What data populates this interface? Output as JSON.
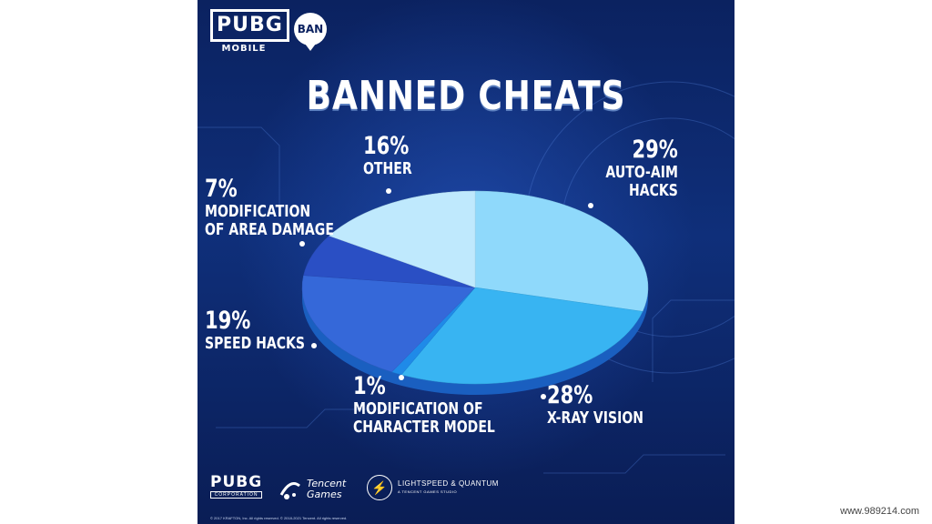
{
  "header": {
    "logo_main": "PUBG",
    "logo_sub": "MOBILE",
    "ban_badge": "BAN"
  },
  "chart_data": {
    "type": "pie",
    "title": "BANNED CHEATS",
    "slices": [
      {
        "label": "AUTO-AIM\nHACKS",
        "label_line1": "AUTO-AIM",
        "label_line2": "HACKS",
        "value": 29,
        "pct_text": "29%",
        "color": "#8fd9fb"
      },
      {
        "label": "X-RAY VISION",
        "label_line1": "X-RAY VISION",
        "label_line2": "",
        "value": 28,
        "pct_text": "28%",
        "color": "#38b4f2"
      },
      {
        "label": "MODIFICATION OF CHARACTER MODEL",
        "label_line1": "MODIFICATION OF",
        "label_line2": "CHARACTER MODEL",
        "value": 1,
        "pct_text": "1%",
        "color": "#1f8ae8"
      },
      {
        "label": "SPEED HACKS",
        "label_line1": "SPEED HACKS",
        "label_line2": "",
        "value": 19,
        "pct_text": "19%",
        "color": "#3568d9"
      },
      {
        "label": "MODIFICATION OF AREA DAMAGE",
        "label_line1": "MODIFICATION",
        "label_line2": "OF AREA DAMAGE",
        "value": 7,
        "pct_text": "7%",
        "color": "#2a4fc4"
      },
      {
        "label": "OTHER",
        "label_line1": "OTHER",
        "label_line2": "",
        "value": 16,
        "pct_text": "16%",
        "color": "#bfe9fd"
      }
    ]
  },
  "footer": {
    "pubg_corp_main": "PUBG",
    "pubg_corp_sub": "CORPORATION",
    "tencent_line1": "Tencent",
    "tencent_line2": "Games",
    "lsq_line1": "LIGHTSPEED & QUANTUM",
    "lsq_line2": "A TENCENT GAMES STUDIO",
    "copyright": "© 2017 KRAFTON, Inc. All rights reserved.    © 2018-2021 Tencent. All rights reserved."
  },
  "watermark": "www.989214.com"
}
